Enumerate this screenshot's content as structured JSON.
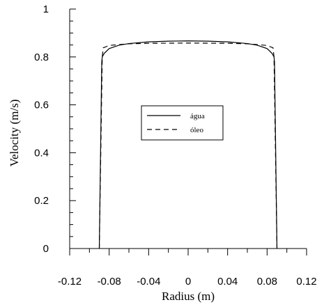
{
  "chart_data": {
    "type": "line",
    "title": "",
    "xlabel": "Radius (m)",
    "ylabel": "Velocity (m/s)",
    "xlim": [
      -0.12,
      0.12
    ],
    "ylim": [
      0,
      1
    ],
    "x_ticks": [
      -0.12,
      -0.08,
      -0.04,
      0,
      0.04,
      0.08,
      0.12
    ],
    "x_tick_labels": [
      "-0.12",
      "-0.08",
      "-0.04",
      "0",
      "0.04",
      "0.08",
      "0.12"
    ],
    "y_ticks": [
      0,
      0.2,
      0.4,
      0.6,
      0.8,
      1
    ],
    "y_tick_labels": [
      "0",
      "0.2",
      "0.4",
      "0.6",
      "0.8",
      "1"
    ],
    "grid": false,
    "legend_position": "center",
    "series": [
      {
        "name": "água",
        "style": "solid",
        "color": "#000000",
        "x": [
          -0.09,
          -0.0875,
          -0.087,
          -0.085,
          -0.08,
          -0.07,
          -0.06,
          -0.04,
          -0.02,
          0,
          0.02,
          0.04,
          0.06,
          0.07,
          0.08,
          0.085,
          0.087,
          0.0875,
          0.09
        ],
        "y": [
          0,
          0.78,
          0.8,
          0.815,
          0.835,
          0.849,
          0.856,
          0.863,
          0.866,
          0.867,
          0.866,
          0.863,
          0.856,
          0.849,
          0.835,
          0.815,
          0.8,
          0.78,
          0
        ]
      },
      {
        "name": "óleo",
        "style": "dashed",
        "color": "#000000",
        "x": [
          -0.09,
          -0.087,
          -0.086,
          -0.08,
          -0.06,
          -0.04,
          0,
          0.04,
          0.06,
          0.08,
          0.086,
          0.087,
          0.09
        ],
        "y": [
          0,
          0.8,
          0.838,
          0.848,
          0.855,
          0.857,
          0.858,
          0.857,
          0.855,
          0.848,
          0.838,
          0.8,
          0
        ]
      }
    ]
  }
}
